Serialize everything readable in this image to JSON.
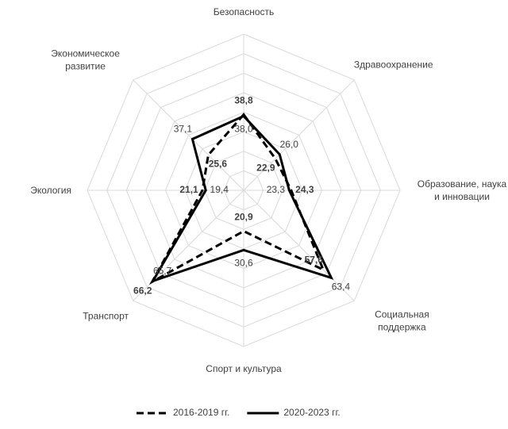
{
  "chart_data": {
    "type": "radar",
    "categories": [
      "Безопасность",
      "Здравоохранение",
      "Образование, наука и инновации",
      "Социальная поддержка",
      "Спорт и культура",
      "Транспорт",
      "Экология",
      "Экономическое развитие"
    ],
    "rlim": [
      0,
      80
    ],
    "rticks": [
      0,
      10,
      20,
      30,
      40,
      50,
      60,
      70,
      80
    ],
    "grid": true,
    "legend": "bottom",
    "series": [
      {
        "name": "2016-2019 гг.",
        "color": "#000000",
        "dash": true,
        "bold_labels": true,
        "values": [
          38.8,
          22.9,
          24.3,
          57.6,
          20.9,
          66.2,
          21.1,
          25.6
        ],
        "value_labels": [
          "38,8",
          "22,9",
          "24,3",
          "57,6",
          "20,9",
          "66,2",
          "21,1",
          "25,6"
        ]
      },
      {
        "name": "2020-2023 гг.",
        "color": "#000000",
        "dash": false,
        "bold_labels": false,
        "values": [
          38.0,
          26.0,
          23.3,
          63.4,
          30.6,
          65.7,
          19.4,
          37.1
        ],
        "value_labels": [
          "38,0",
          "26,0",
          "23,3",
          "63,4",
          "30,6",
          "65,7",
          "19,4",
          "37,1"
        ]
      }
    ]
  }
}
